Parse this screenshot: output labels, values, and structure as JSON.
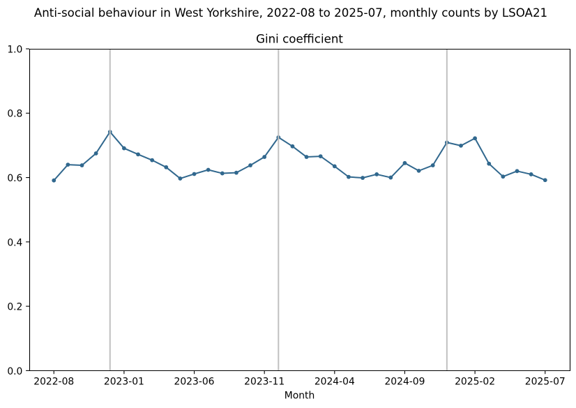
{
  "chart_data": {
    "type": "line",
    "suptitle": "Anti-social behaviour in West Yorkshire, 2022-08 to 2025-07, monthly counts by LSOA21",
    "title": "Gini coefficient",
    "xlabel": "Month",
    "ylabel": "",
    "categories": [
      "2022-08",
      "2022-09",
      "2022-10",
      "2022-11",
      "2022-12",
      "2023-01",
      "2023-02",
      "2023-03",
      "2023-04",
      "2023-05",
      "2023-06",
      "2023-07",
      "2023-08",
      "2023-09",
      "2023-10",
      "2023-11",
      "2023-12",
      "2024-01",
      "2024-02",
      "2024-03",
      "2024-04",
      "2024-05",
      "2024-06",
      "2024-07",
      "2024-08",
      "2024-09",
      "2024-10",
      "2024-11",
      "2024-12",
      "2025-01",
      "2025-02",
      "2025-03",
      "2025-04",
      "2025-05",
      "2025-06",
      "2025-07"
    ],
    "series": [
      {
        "name": "Gini coefficient",
        "values": [
          0.591,
          0.64,
          0.638,
          0.675,
          0.742,
          0.691,
          0.672,
          0.654,
          0.632,
          0.597,
          0.611,
          0.624,
          0.613,
          0.615,
          0.638,
          0.664,
          0.725,
          0.697,
          0.664,
          0.666,
          0.635,
          0.602,
          0.599,
          0.61,
          0.6,
          0.645,
          0.621,
          0.638,
          0.709,
          0.699,
          0.722,
          0.643,
          0.603,
          0.62,
          0.61,
          0.592
        ]
      }
    ],
    "ylim": [
      0.0,
      1.0
    ],
    "ytick_labels": [
      "0.0",
      "0.2",
      "0.4",
      "0.6",
      "0.8",
      "1.0"
    ],
    "xtick_labels": [
      "2022-08",
      "2023-01",
      "2023-06",
      "2023-11",
      "2024-04",
      "2024-09",
      "2025-02",
      "2025-07"
    ],
    "xtick_every": 5,
    "vertical_gridlines_at": [
      "2022-12",
      "2023-12",
      "2024-12"
    ],
    "grid": "vertical-lines-only",
    "legend": "none",
    "colors": {
      "line": "#31688e",
      "marker": "#31688e",
      "gridline": "#c0c0c0",
      "spine": "#000000",
      "background": "#ffffff"
    }
  }
}
